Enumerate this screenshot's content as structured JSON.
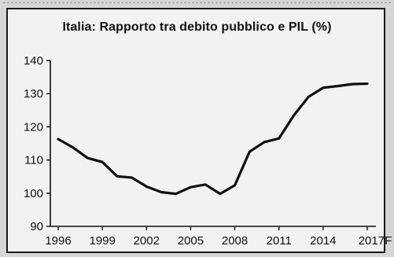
{
  "chart_data": {
    "type": "line",
    "title": "Italia: Rapporto tra debito pubblico e PIL (%)",
    "xlabel": "",
    "ylabel": "",
    "x": [
      1996,
      1997,
      1998,
      1999,
      2000,
      2001,
      2002,
      2003,
      2004,
      2005,
      2006,
      2007,
      2008,
      2009,
      2010,
      2011,
      2012,
      2013,
      2014,
      2015,
      2016,
      2017
    ],
    "series": [
      {
        "values": [
          116.3,
          113.8,
          110.6,
          109.4,
          105.1,
          104.7,
          102.0,
          100.3,
          99.8,
          101.8,
          102.6,
          99.8,
          102.4,
          112.5,
          115.4,
          116.5,
          123.4,
          129.0,
          131.8,
          132.3,
          132.9,
          133.0
        ]
      }
    ],
    "xticks": [
      "1996",
      "1999",
      "2002",
      "2005",
      "2008",
      "2011",
      "2014",
      "2017F"
    ],
    "xtick_years": [
      1996,
      1999,
      2002,
      2005,
      2008,
      2011,
      2014,
      2017
    ],
    "yticks": [
      "90",
      "100",
      "110",
      "120",
      "130",
      "140"
    ],
    "ylim": [
      90,
      140
    ],
    "xlim": [
      1996,
      2017
    ],
    "grid": false,
    "line_color": "#111111"
  }
}
